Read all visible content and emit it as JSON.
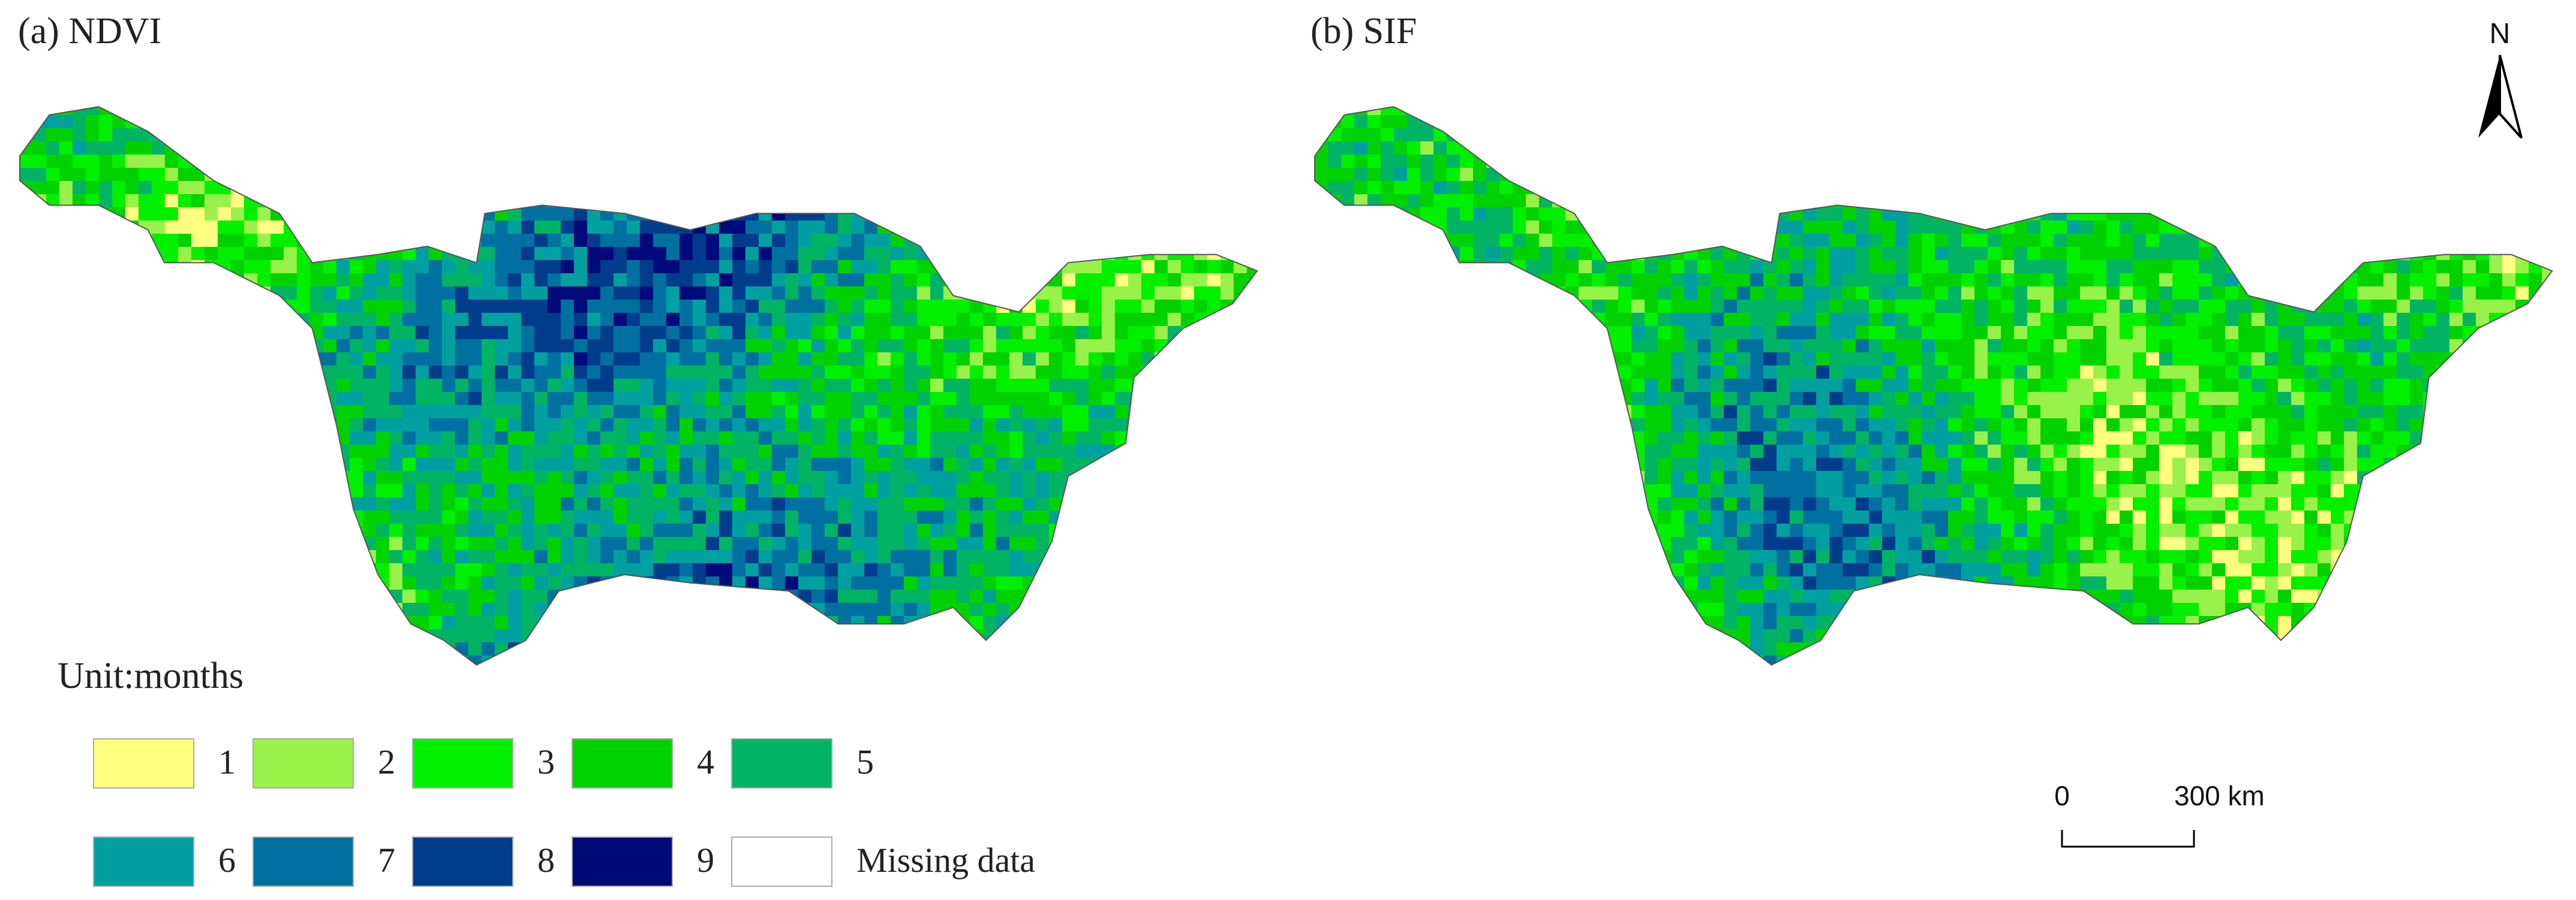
{
  "panels": [
    {
      "title": "(a) NDVI"
    },
    {
      "title": "(b) SIF"
    }
  ],
  "legend": {
    "title": "Unit:months",
    "items": [
      {
        "label": 1,
        "color": "#ffff80"
      },
      {
        "label": 2,
        "color": "#98f24a"
      },
      {
        "label": 3,
        "color": "#00f000"
      },
      {
        "label": 4,
        "color": "#00d200"
      },
      {
        "label": 5,
        "color": "#00b464"
      },
      {
        "label": 6,
        "color": "#00a0a0"
      },
      {
        "label": 7,
        "color": "#0070a0"
      },
      {
        "label": 8,
        "color": "#003c8c"
      },
      {
        "label": 9,
        "color": "#000a78"
      },
      {
        "label": "Missing data",
        "color": "#ffffff"
      }
    ]
  },
  "north_arrow": {
    "label": "N"
  },
  "scale_bar": {
    "labels": [
      "0",
      "300 km"
    ]
  }
}
